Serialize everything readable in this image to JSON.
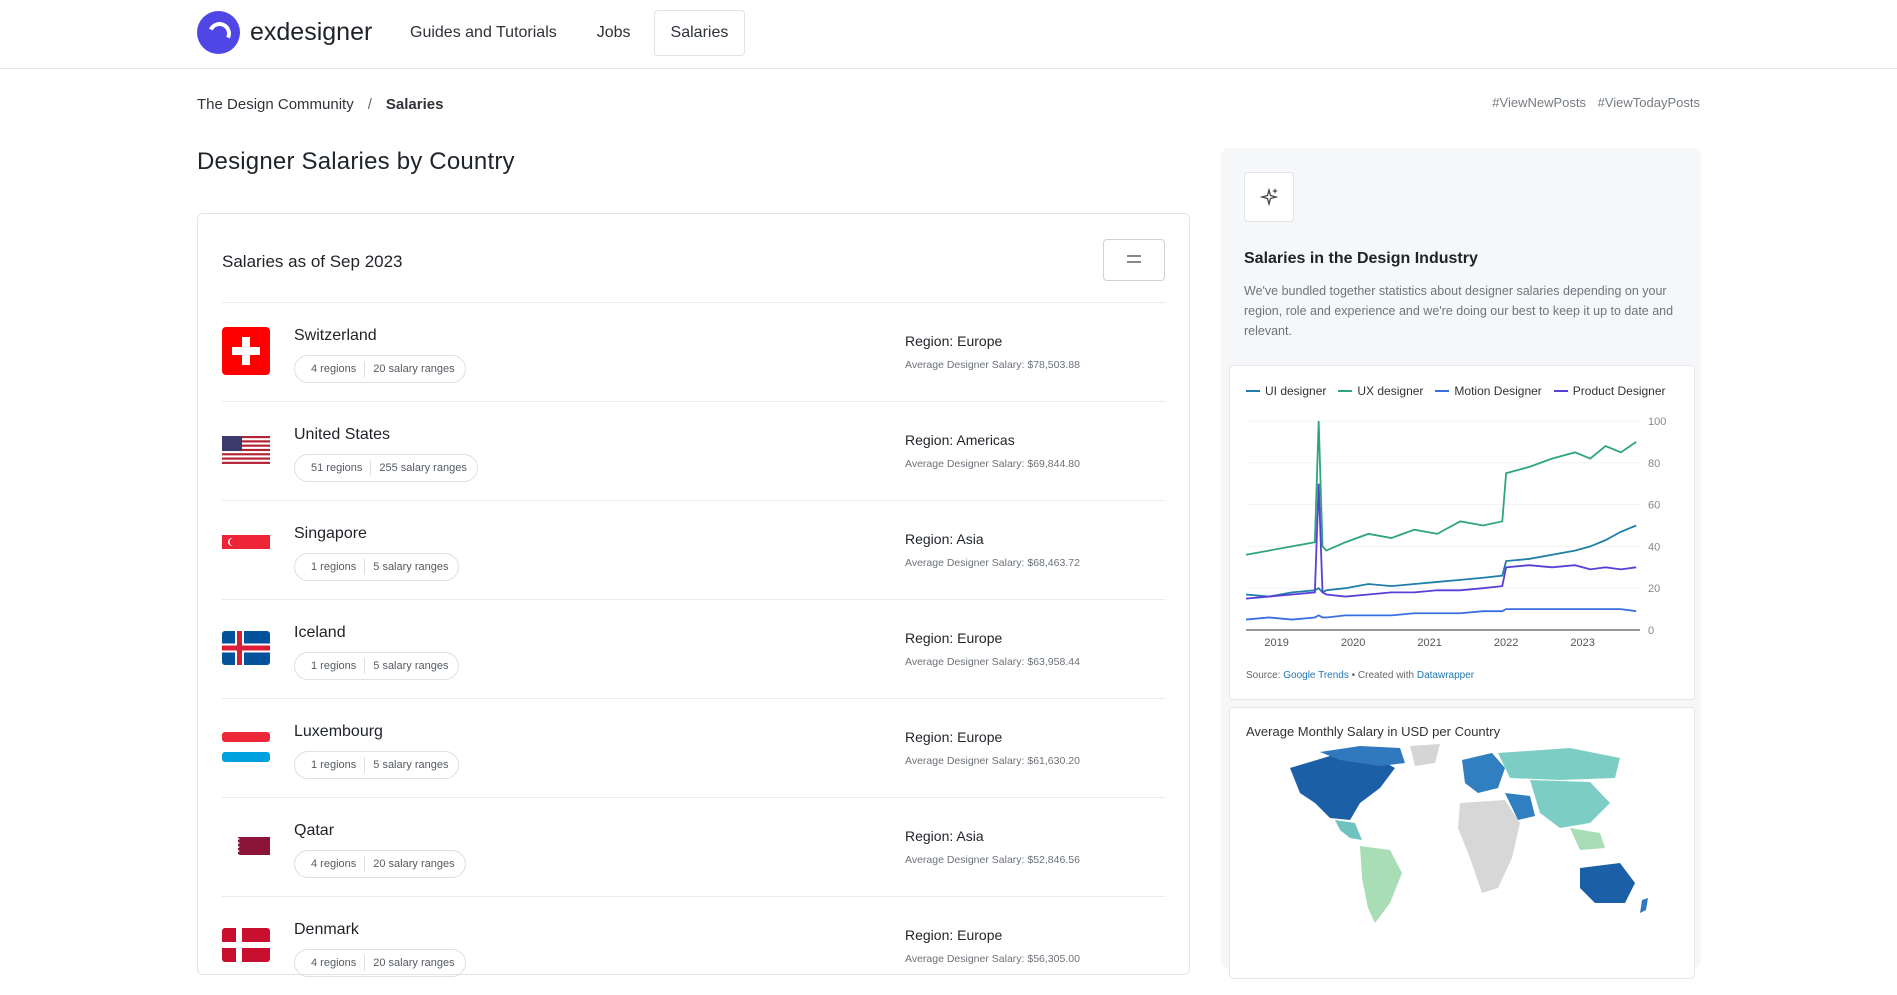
{
  "header": {
    "brand": "exdesigner",
    "nav": [
      {
        "label": "Guides and Tutorials",
        "active": false
      },
      {
        "label": "Jobs",
        "active": false
      },
      {
        "label": "Salaries",
        "active": true
      }
    ]
  },
  "breadcrumb": {
    "root": "The Design Community",
    "separator": "/",
    "current": "Salaries"
  },
  "tags": [
    "#ViewNewPosts",
    "#ViewTodayPosts"
  ],
  "page_title": "Designer Salaries by Country",
  "salaries_card": {
    "title": "Salaries as of Sep 2023",
    "rows": [
      {
        "country": "Switzerland",
        "regions": "4 regions",
        "ranges": "20 salary ranges",
        "region": "Region: Europe",
        "avg": "Average Designer Salary: $78,503.88"
      },
      {
        "country": "United States",
        "regions": "51 regions",
        "ranges": "255 salary ranges",
        "region": "Region: Americas",
        "avg": "Average Designer Salary: $69,844.80"
      },
      {
        "country": "Singapore",
        "regions": "1 regions",
        "ranges": "5 salary ranges",
        "region": "Region: Asia",
        "avg": "Average Designer Salary: $68,463.72"
      },
      {
        "country": "Iceland",
        "regions": "1 regions",
        "ranges": "5 salary ranges",
        "region": "Region: Europe",
        "avg": "Average Designer Salary: $63,958.44"
      },
      {
        "country": "Luxembourg",
        "regions": "1 regions",
        "ranges": "5 salary ranges",
        "region": "Region: Europe",
        "avg": "Average Designer Salary: $61,630.20"
      },
      {
        "country": "Qatar",
        "regions": "4 regions",
        "ranges": "20 salary ranges",
        "region": "Region: Asia",
        "avg": "Average Designer Salary: $52,846.56"
      },
      {
        "country": "Denmark",
        "regions": "4 regions",
        "ranges": "20 salary ranges",
        "region": "Region: Europe",
        "avg": "Average Designer Salary: $56,305.00"
      }
    ]
  },
  "sidebar": {
    "title": "Salaries in the Design Industry",
    "description": "We've bundled together statistics about designer salaries depending on your region, role and experience and we're doing our best to keep it up to date and relevant.",
    "source_prefix": "Source:",
    "source_link": "Google Trends",
    "created_prefix": "• Created with",
    "created_link": "Datawrapper",
    "map_title": "Average Monthly Salary in USD per Country"
  },
  "chart_data": {
    "type": "line",
    "title": "",
    "xlabel": "",
    "ylabel": "",
    "x_ticks": [
      "2019",
      "2020",
      "2021",
      "2022",
      "2023"
    ],
    "y_ticks": [
      0,
      20,
      40,
      60,
      80,
      100
    ],
    "xlim": [
      2018.6,
      2023.75
    ],
    "ylim": [
      0,
      100
    ],
    "x": [
      2018.6,
      2018.9,
      2019.2,
      2019.5,
      2019.55,
      2019.6,
      2019.65,
      2019.9,
      2020.2,
      2020.5,
      2020.8,
      2021.1,
      2021.4,
      2021.7,
      2021.95,
      2022.0,
      2022.3,
      2022.6,
      2022.9,
      2023.1,
      2023.3,
      2023.5,
      2023.7
    ],
    "series": [
      {
        "name": "UI designer",
        "color": "#1f7fa6",
        "values": [
          17,
          16,
          18,
          19,
          20,
          18,
          19,
          20,
          22,
          21,
          22,
          23,
          24,
          25,
          26,
          33,
          34,
          36,
          38,
          40,
          43,
          47,
          50
        ]
      },
      {
        "name": "UX designer",
        "color": "#2ea57a",
        "values": [
          36,
          38,
          40,
          42,
          100,
          40,
          38,
          42,
          46,
          44,
          48,
          46,
          52,
          50,
          52,
          75,
          78,
          82,
          85,
          82,
          88,
          85,
          90
        ]
      },
      {
        "name": "Motion Designer",
        "color": "#3b6fe0",
        "values": [
          5,
          6,
          5,
          6,
          7,
          6,
          6,
          7,
          7,
          7,
          8,
          8,
          8,
          9,
          9,
          10,
          10,
          10,
          10,
          10,
          10,
          10,
          9
        ]
      },
      {
        "name": "Product Designer",
        "color": "#5a3fd6",
        "values": [
          15,
          16,
          17,
          18,
          70,
          18,
          17,
          16,
          17,
          18,
          18,
          19,
          19,
          20,
          21,
          30,
          31,
          30,
          31,
          29,
          30,
          29,
          30
        ]
      }
    ]
  }
}
